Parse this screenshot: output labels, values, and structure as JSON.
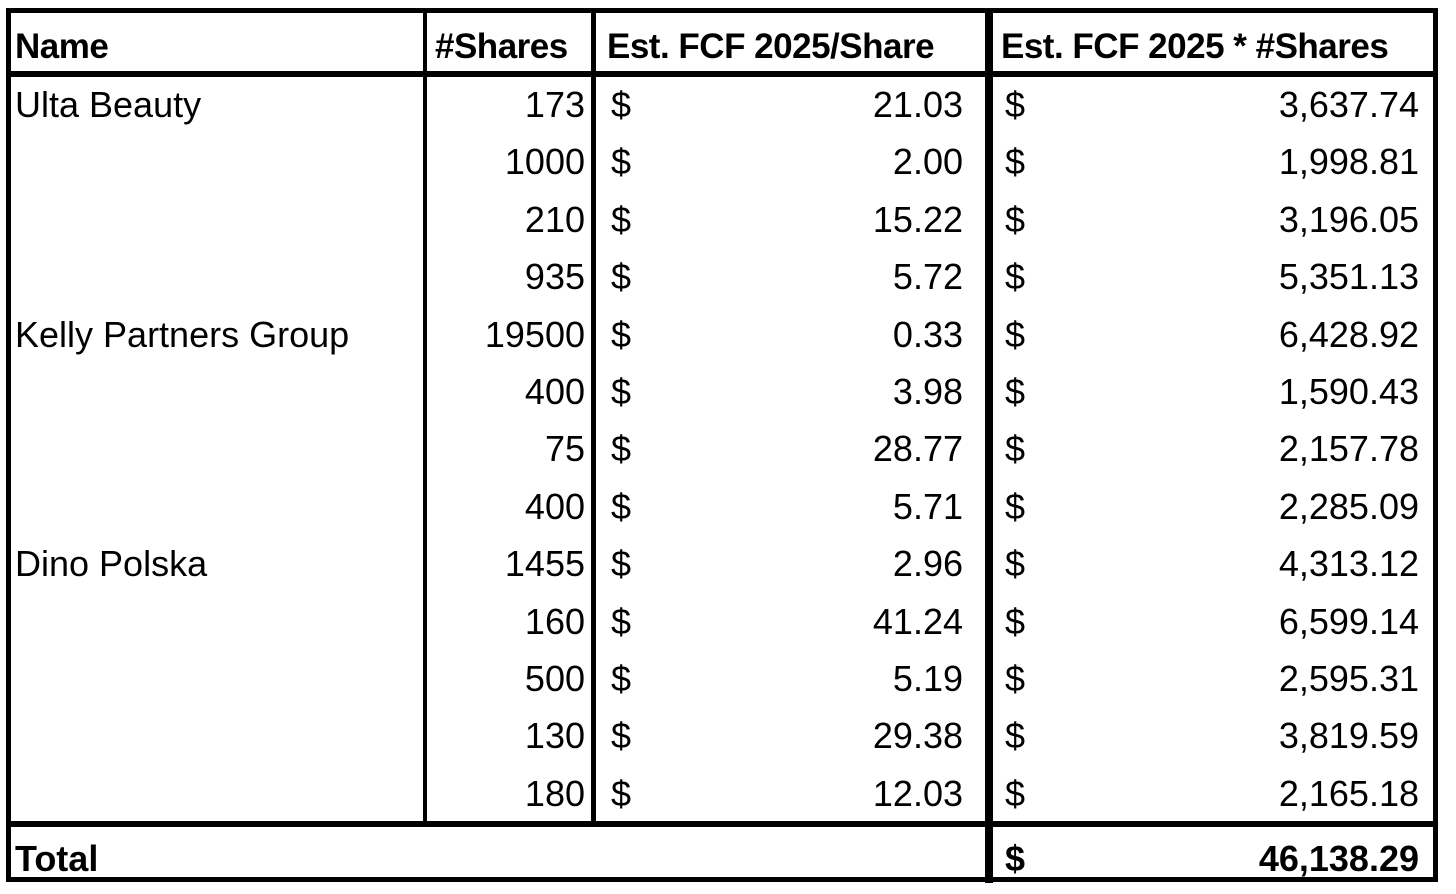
{
  "table": {
    "headers": {
      "name": "Name",
      "shares": "#Shares",
      "fcf_per_share": "Est. FCF 2025/Share",
      "fcf_total": "Est. FCF 2025 * #Shares"
    },
    "currency_symbol": "$",
    "rows": [
      {
        "name": "Ulta Beauty",
        "shares": "173",
        "fcf_per_share": "21.03",
        "fcf_total": "3,637.74"
      },
      {
        "name": "",
        "shares": "1000",
        "fcf_per_share": "2.00",
        "fcf_total": "1,998.81"
      },
      {
        "name": "",
        "shares": "210",
        "fcf_per_share": "15.22",
        "fcf_total": "3,196.05"
      },
      {
        "name": "",
        "shares": "935",
        "fcf_per_share": "5.72",
        "fcf_total": "5,351.13"
      },
      {
        "name": "Kelly Partners Group",
        "shares": "19500",
        "fcf_per_share": "0.33",
        "fcf_total": "6,428.92"
      },
      {
        "name": "",
        "shares": "400",
        "fcf_per_share": "3.98",
        "fcf_total": "1,590.43"
      },
      {
        "name": "",
        "shares": "75",
        "fcf_per_share": "28.77",
        "fcf_total": "2,157.78"
      },
      {
        "name": "",
        "shares": "400",
        "fcf_per_share": "5.71",
        "fcf_total": "2,285.09"
      },
      {
        "name": "Dino Polska",
        "shares": "1455",
        "fcf_per_share": "2.96",
        "fcf_total": "4,313.12"
      },
      {
        "name": "",
        "shares": "160",
        "fcf_per_share": "41.24",
        "fcf_total": "6,599.14"
      },
      {
        "name": "",
        "shares": "500",
        "fcf_per_share": "5.19",
        "fcf_total": "2,595.31"
      },
      {
        "name": "",
        "shares": "130",
        "fcf_per_share": "29.38",
        "fcf_total": "3,819.59"
      },
      {
        "name": "",
        "shares": "180",
        "fcf_per_share": "12.03",
        "fcf_total": "2,165.18"
      }
    ],
    "total": {
      "label": "Total",
      "currency_symbol": "$",
      "value": "46,138.29"
    }
  }
}
